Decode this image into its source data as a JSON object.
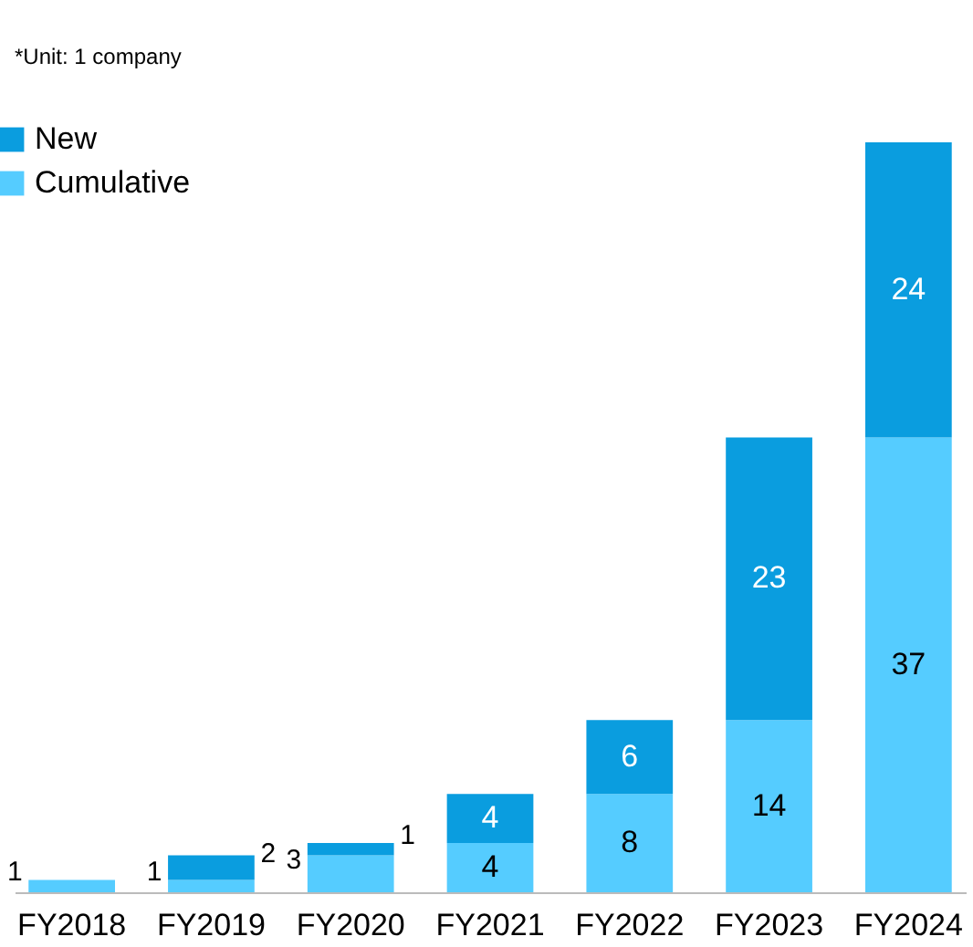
{
  "chart_data": {
    "type": "bar",
    "stacked": true,
    "data_labels": true,
    "legend": "top left",
    "grid": false,
    "annotations": [
      "*Unit: 1 company"
    ],
    "categories": [
      "FY2018",
      "FY2019",
      "FY2020",
      "FY2021",
      "FY2022",
      "FY2023",
      "FY2024"
    ],
    "series": [
      {
        "name": "Cumulative",
        "color": "#55ccff",
        "values": [
          1,
          1,
          3,
          4,
          8,
          14,
          37
        ]
      },
      {
        "name": "New",
        "color": "#0a9ddf",
        "values": [
          null,
          2,
          1,
          4,
          6,
          23,
          24
        ]
      }
    ]
  }
}
